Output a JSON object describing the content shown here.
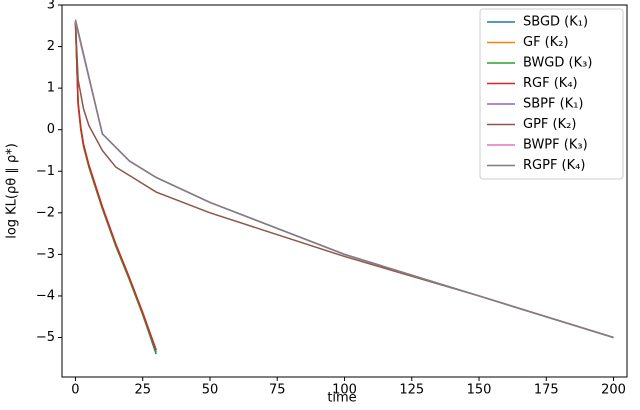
{
  "chart_data": {
    "type": "line",
    "x_label": "time",
    "y_label": "log KL(ρθ ∥ ρ*)",
    "xlim": [
      -5,
      205
    ],
    "ylim": [
      -5.95,
      3.0
    ],
    "xticks": [
      0,
      25,
      50,
      75,
      100,
      125,
      150,
      175,
      200
    ],
    "yticks": [
      {
        "value": -5,
        "label": "−5"
      },
      {
        "value": -4,
        "label": "−4"
      },
      {
        "value": -3,
        "label": "−3"
      },
      {
        "value": -2,
        "label": "−2"
      },
      {
        "value": -1,
        "label": "−1"
      },
      0,
      1,
      2,
      3
    ],
    "legend": "upper right",
    "series": [
      {
        "name": "SBGD (K₁)",
        "color": "#1f77b4",
        "x": [
          0,
          1,
          2,
          3,
          5,
          7,
          10,
          15,
          20,
          25,
          30
        ],
        "values": [
          2.6,
          0.6,
          0.0,
          -0.4,
          -0.9,
          -1.3,
          -1.9,
          -2.8,
          -3.6,
          -4.45,
          -5.4
        ]
      },
      {
        "name": "GF (K₂)",
        "color": "#ff7f0e",
        "x": [
          0,
          1,
          2,
          3,
          5,
          7,
          10,
          15,
          20,
          25,
          30
        ],
        "values": [
          2.6,
          0.65,
          0.05,
          -0.35,
          -0.85,
          -1.25,
          -1.85,
          -2.75,
          -3.55,
          -4.4,
          -5.3
        ]
      },
      {
        "name": "BWGD (K₃)",
        "color": "#2ca02c",
        "x": [
          0,
          1,
          2,
          3,
          5,
          7,
          10,
          15,
          20,
          25,
          30
        ],
        "values": [
          2.6,
          0.6,
          0.0,
          -0.4,
          -0.9,
          -1.3,
          -1.9,
          -2.8,
          -3.6,
          -4.45,
          -5.35
        ]
      },
      {
        "name": "RGF (K₄)",
        "color": "#d62728",
        "x": [
          0,
          1,
          2,
          3,
          5,
          7,
          10,
          15,
          20,
          25,
          30
        ],
        "values": [
          2.6,
          0.65,
          0.05,
          -0.35,
          -0.85,
          -1.25,
          -1.85,
          -2.75,
          -3.55,
          -4.4,
          -5.3
        ]
      },
      {
        "name": "SBPF (K₁)",
        "color": "#9467bd",
        "x": [
          0,
          10,
          20,
          30,
          50,
          100,
          150,
          200
        ],
        "values": [
          2.6,
          -0.1,
          -0.75,
          -1.15,
          -1.75,
          -3.0,
          -4.0,
          -5.0
        ]
      },
      {
        "name": "GPF (K₂)",
        "color": "#8c564b",
        "x": [
          0,
          1,
          3,
          5,
          10,
          15,
          20,
          30,
          50,
          100,
          150,
          200
        ],
        "values": [
          2.6,
          1.2,
          0.5,
          0.1,
          -0.5,
          -0.9,
          -1.1,
          -1.5,
          -2.0,
          -3.05,
          -4.0,
          -5.0
        ]
      },
      {
        "name": "BWPF (K₃)",
        "color": "#e377c2",
        "x": [
          0,
          10,
          20,
          30,
          50,
          100,
          150,
          200
        ],
        "values": [
          2.6,
          -0.1,
          -0.75,
          -1.15,
          -1.75,
          -3.0,
          -4.0,
          -5.0
        ]
      },
      {
        "name": "RGPF (K₄)",
        "color": "#7f7f7f",
        "x": [
          0,
          10,
          20,
          30,
          50,
          100,
          150,
          200
        ],
        "values": [
          2.65,
          -0.1,
          -0.75,
          -1.15,
          -1.75,
          -3.0,
          -4.0,
          -5.0
        ]
      }
    ]
  }
}
